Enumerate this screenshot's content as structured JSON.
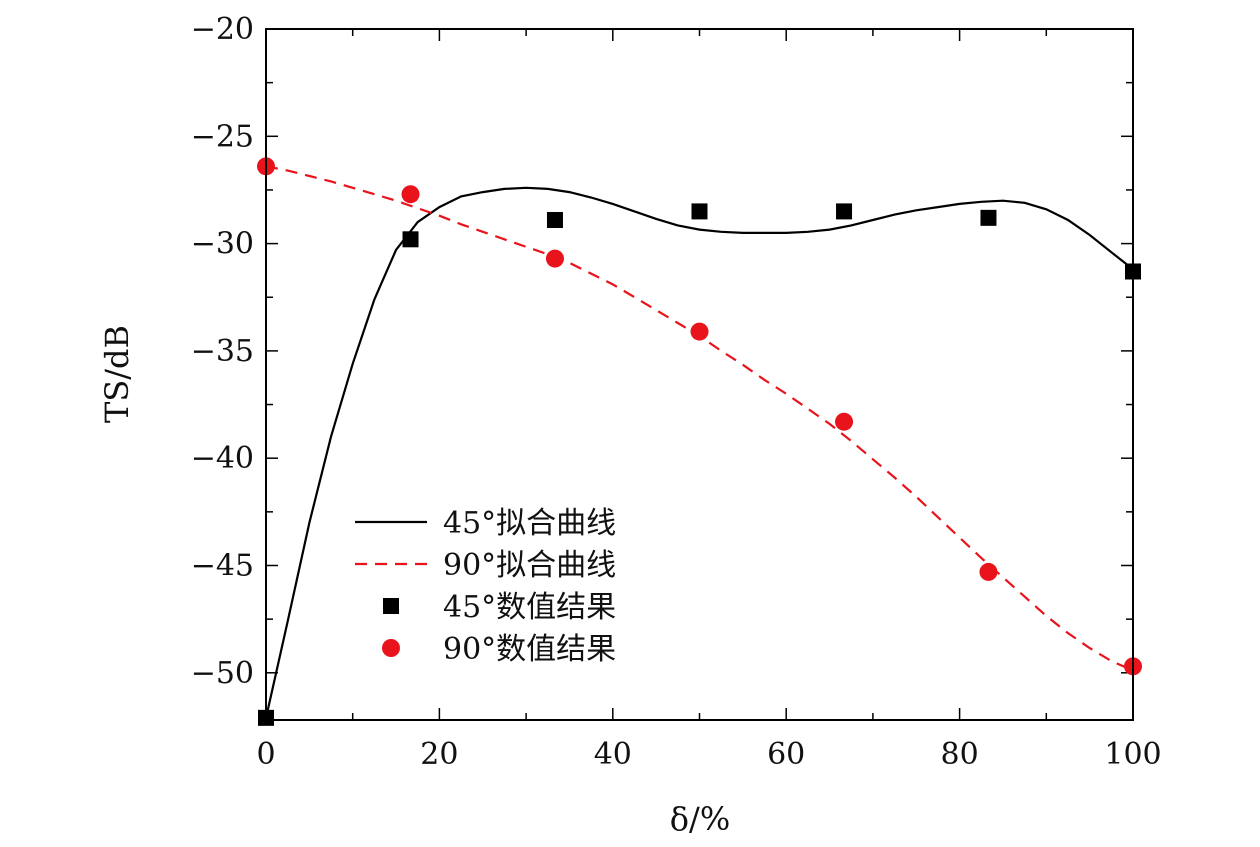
{
  "chart_data": {
    "type": "line",
    "title": "",
    "xlabel": "δ/%",
    "ylabel": "TS/dB",
    "xlim": [
      0,
      100
    ],
    "ylim": [
      -52.2,
      -20
    ],
    "xticks": [
      0,
      20,
      40,
      60,
      80,
      100
    ],
    "yticks": [
      -50,
      -45,
      -40,
      -35,
      -30,
      -25,
      -20
    ],
    "ytick_labels": [
      "−50",
      "−45",
      "−40",
      "−35",
      "−30",
      "−25",
      "−20"
    ],
    "grid": false,
    "legend_position": "lower-left",
    "series": [
      {
        "name": "45°拟合曲线",
        "kind": "line",
        "style": "solid",
        "color": "#000000",
        "x": [
          0,
          2.5,
          5,
          7.5,
          10,
          12.5,
          15,
          17.5,
          20,
          22.5,
          25,
          27.5,
          30,
          32.5,
          35,
          37.5,
          40,
          42.5,
          45,
          47.5,
          50,
          52.5,
          55,
          57.5,
          60,
          62.5,
          65,
          67.5,
          70,
          72.5,
          75,
          77.5,
          80,
          82.5,
          85,
          87.5,
          90,
          92.5,
          95,
          97.5,
          100
        ],
        "y": [
          -52.1,
          -47.6,
          -43.0,
          -39.0,
          -35.6,
          -32.6,
          -30.3,
          -29.0,
          -28.3,
          -27.8,
          -27.6,
          -27.45,
          -27.4,
          -27.45,
          -27.6,
          -27.85,
          -28.15,
          -28.5,
          -28.85,
          -29.15,
          -29.35,
          -29.45,
          -29.5,
          -29.5,
          -29.5,
          -29.45,
          -29.35,
          -29.15,
          -28.9,
          -28.65,
          -28.45,
          -28.3,
          -28.15,
          -28.05,
          -28.0,
          -28.1,
          -28.4,
          -28.9,
          -29.6,
          -30.4,
          -31.2
        ]
      },
      {
        "name": "90°拟合曲线",
        "kind": "line",
        "style": "dashed",
        "color": "#e8131b",
        "x": [
          0,
          2.5,
          5,
          7.5,
          10,
          12.5,
          15,
          17.5,
          20,
          22.5,
          25,
          27.5,
          30,
          32.5,
          35,
          37.5,
          40,
          42.5,
          45,
          47.5,
          50,
          52.5,
          55,
          57.5,
          60,
          62.5,
          65,
          67.5,
          70,
          72.5,
          75,
          77.5,
          80,
          82.5,
          85,
          87.5,
          90,
          92.5,
          95,
          97.5,
          100
        ],
        "y": [
          -26.4,
          -26.6,
          -26.85,
          -27.1,
          -27.4,
          -27.7,
          -28.0,
          -28.35,
          -28.7,
          -29.1,
          -29.45,
          -29.8,
          -30.15,
          -30.5,
          -30.9,
          -31.4,
          -31.9,
          -32.5,
          -33.1,
          -33.7,
          -34.3,
          -35.0,
          -35.65,
          -36.35,
          -37.0,
          -37.7,
          -38.4,
          -39.2,
          -40.05,
          -40.9,
          -41.8,
          -42.75,
          -43.7,
          -44.65,
          -45.55,
          -46.45,
          -47.35,
          -48.15,
          -48.85,
          -49.45,
          -49.9
        ]
      },
      {
        "name": "45°数值结果",
        "kind": "scatter",
        "marker": "square",
        "color": "#000000",
        "x": [
          0,
          16.67,
          33.33,
          50,
          66.67,
          83.33,
          100
        ],
        "y": [
          -52.1,
          -29.8,
          -28.9,
          -28.5,
          -28.5,
          -28.8,
          -31.3
        ]
      },
      {
        "name": "90°数值结果",
        "kind": "scatter",
        "marker": "circle",
        "color": "#e8131b",
        "x": [
          0,
          16.67,
          33.33,
          50,
          66.67,
          83.33,
          100
        ],
        "y": [
          -26.4,
          -27.7,
          -30.7,
          -34.1,
          -38.3,
          -45.3,
          -49.7
        ]
      }
    ]
  }
}
